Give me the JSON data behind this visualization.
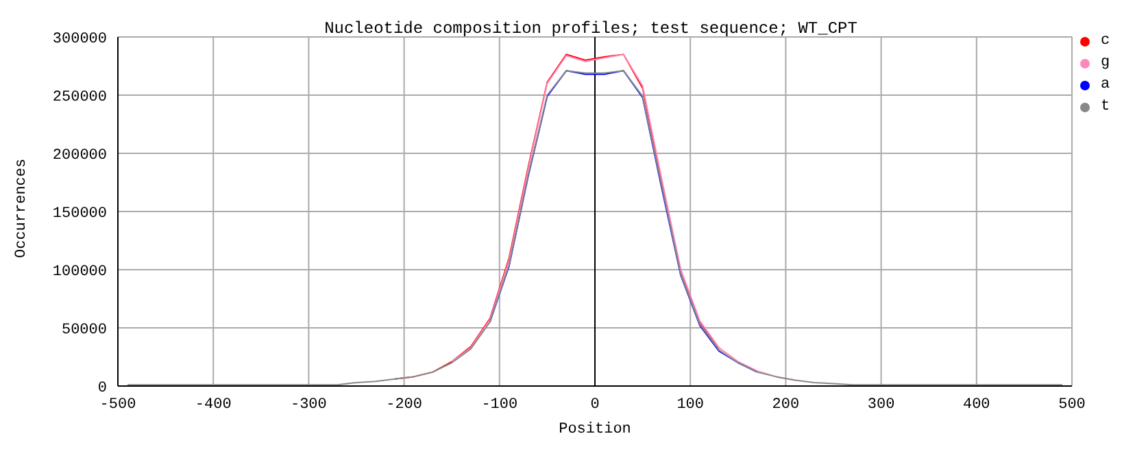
{
  "chart_data": {
    "type": "line",
    "title": "Nucleotide composition profiles; test sequence; WT_CPT",
    "xlabel": "Position",
    "ylabel": "Occurrences",
    "x": [
      -490,
      -470,
      -450,
      -430,
      -410,
      -390,
      -370,
      -350,
      -330,
      -310,
      -290,
      -270,
      -250,
      -230,
      -210,
      -190,
      -170,
      -150,
      -130,
      -110,
      -90,
      -70,
      -50,
      -30,
      -10,
      10,
      30,
      50,
      70,
      90,
      110,
      130,
      150,
      170,
      190,
      210,
      230,
      250,
      270,
      290,
      310,
      330,
      350,
      370,
      390,
      410,
      430,
      450,
      470,
      490
    ],
    "series": [
      {
        "name": "c",
        "color": "#ff0000",
        "values": [
          null,
          null,
          null,
          null,
          null,
          null,
          null,
          null,
          null,
          null,
          null,
          null,
          null,
          null,
          6000,
          8000,
          12000,
          21000,
          34000,
          58000,
          110000,
          188000,
          261000,
          285000,
          280000,
          283000,
          285000,
          256000,
          176000,
          99000,
          55000,
          32000,
          null,
          null,
          null,
          null,
          null,
          null,
          null,
          null,
          null,
          null,
          null,
          null,
          null,
          null,
          null,
          null,
          null,
          null
        ]
      },
      {
        "name": "g",
        "color": "#ff88bb",
        "values": [
          null,
          null,
          null,
          null,
          null,
          null,
          null,
          null,
          null,
          null,
          null,
          null,
          null,
          null,
          null,
          null,
          null,
          21000,
          33000,
          57000,
          108000,
          186000,
          260000,
          284000,
          279000,
          282000,
          285000,
          258000,
          178000,
          100000,
          56000,
          33000,
          21000,
          13000,
          8000,
          5000,
          null,
          null,
          null,
          null,
          null,
          null,
          null,
          null,
          null,
          null,
          null,
          null,
          null,
          null
        ]
      },
      {
        "name": "a",
        "color": "#0000ff",
        "values": [
          null,
          null,
          null,
          null,
          null,
          null,
          null,
          null,
          null,
          null,
          null,
          null,
          null,
          null,
          null,
          null,
          null,
          null,
          null,
          55000,
          103000,
          180000,
          249000,
          271000,
          268000,
          268000,
          271000,
          248000,
          170000,
          95000,
          52000,
          30000,
          20000,
          12000,
          null,
          null,
          null,
          null,
          null,
          null,
          null,
          null,
          null,
          null,
          null,
          null,
          null,
          null,
          null,
          null
        ]
      },
      {
        "name": "t",
        "color": "#888888",
        "values": [
          1000,
          1000,
          1000,
          1000,
          1000,
          1000,
          1000,
          1000,
          1000,
          1000,
          1000,
          1000,
          3000,
          4000,
          6000,
          8000,
          12000,
          20000,
          32000,
          55000,
          104000,
          181000,
          250000,
          271000,
          269000,
          269000,
          271000,
          249000,
          172000,
          96000,
          53000,
          31000,
          20000,
          12000,
          8000,
          5000,
          3000,
          2000,
          1000,
          1000,
          1000,
          1000,
          1000,
          1000,
          1000,
          1000,
          1000,
          1000,
          1000,
          1000
        ]
      }
    ],
    "xlim": [
      -500,
      500
    ],
    "xticks": [
      -500,
      -400,
      -300,
      -200,
      -100,
      0,
      100,
      200,
      300,
      400,
      500
    ],
    "ylim": [
      0,
      300000
    ],
    "yticks": [
      0,
      50000,
      100000,
      150000,
      200000,
      250000,
      300000
    ],
    "grid": true,
    "legend": "top right",
    "marker": "none",
    "line_style": "solid",
    "ref_lines": [
      {
        "axis": "x",
        "value": 0,
        "color": "#000000"
      }
    ]
  }
}
